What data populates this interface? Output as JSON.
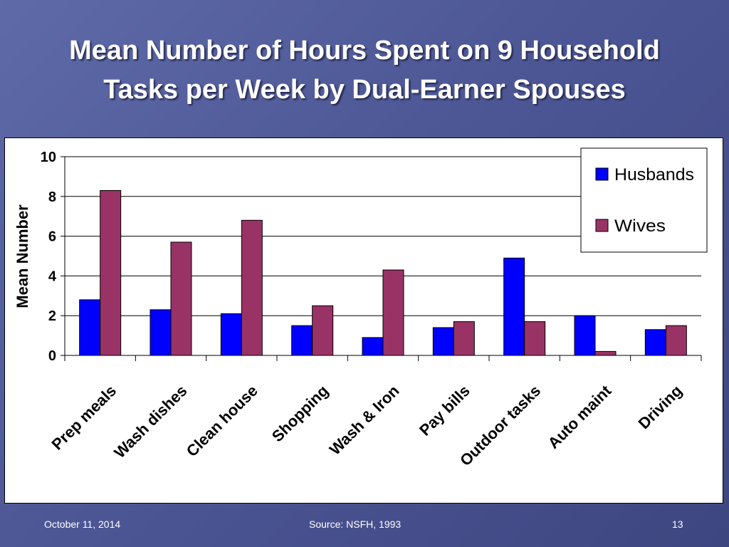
{
  "slide": {
    "title_line1": "Mean Number of Hours Spent on 9 Household",
    "title_line2": "Tasks per Week by Dual-Earner Spouses",
    "footer_date": "October 11, 2014",
    "footer_source": "Source: NSFH, 1993",
    "page_number": "13"
  },
  "chart_data": {
    "type": "bar",
    "ylabel": "Mean Number",
    "xlabel": "",
    "ylim": [
      0,
      10
    ],
    "yticks": [
      0,
      2,
      4,
      6,
      8,
      10
    ],
    "grid": true,
    "legend_position": "top-right",
    "categories": [
      "Prep meals",
      "Wash dishes",
      "Clean house",
      "Shopping",
      "Wash & Iron",
      "Pay bills",
      "Outdoor tasks",
      "Auto maint",
      "Driving"
    ],
    "series": [
      {
        "name": "Husbands",
        "color": "#0000ff",
        "values": [
          2.8,
          2.3,
          2.1,
          1.5,
          0.9,
          1.4,
          4.9,
          2.0,
          1.3
        ]
      },
      {
        "name": "Wives",
        "color": "#993366",
        "values": [
          8.3,
          5.7,
          6.8,
          2.5,
          4.3,
          1.7,
          1.7,
          0.2,
          1.5
        ]
      }
    ]
  }
}
